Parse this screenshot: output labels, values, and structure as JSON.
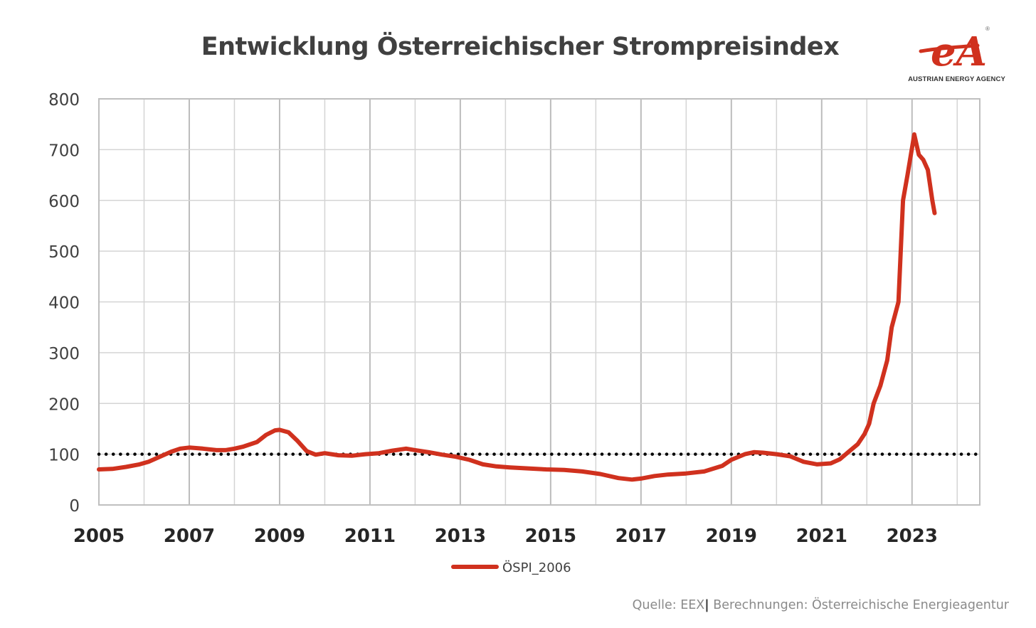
{
  "title": "Entwicklung Österreichischer Strompreisindex",
  "logo": {
    "brand": "eA",
    "caption": "AUSTRIAN ENERGY AGENCY",
    "registered": "®"
  },
  "source": {
    "prefix": "Quelle: EEX",
    "separator": "|",
    "suffix": " Berechnungen: Österreichische Energieagentur"
  },
  "colors": {
    "series": "#d0311e",
    "grid": "#d4d4d4",
    "axis_text": "#404040",
    "reference": "#000000"
  },
  "chart_data": {
    "type": "line",
    "title": "Entwicklung Österreichischer Strompreisindex",
    "xlabel": "",
    "ylabel": "",
    "xlim": [
      2005,
      2024.5
    ],
    "ylim": [
      0,
      800
    ],
    "grid": true,
    "legend_position": "bottom-center",
    "x_tick_labels": [
      "2005",
      "2007",
      "2009",
      "2011",
      "2013",
      "2015",
      "2017",
      "2019",
      "2021",
      "2023"
    ],
    "y_tick_labels": [
      "0",
      "100",
      "200",
      "300",
      "400",
      "500",
      "600",
      "700",
      "800"
    ],
    "reference_line": {
      "y": 100,
      "style": "dotted"
    },
    "series": [
      {
        "name": "ÖSPI_2006",
        "x": [
          2005.0,
          2005.3,
          2005.6,
          2005.9,
          2006.1,
          2006.4,
          2006.6,
          2006.8,
          2007.0,
          2007.3,
          2007.6,
          2007.8,
          2008.0,
          2008.2,
          2008.5,
          2008.7,
          2008.9,
          2009.0,
          2009.2,
          2009.4,
          2009.6,
          2009.8,
          2010.0,
          2010.3,
          2010.6,
          2010.9,
          2011.2,
          2011.5,
          2011.8,
          2012.0,
          2012.3,
          2012.6,
          2012.9,
          2013.2,
          2013.5,
          2013.8,
          2014.1,
          2014.5,
          2014.9,
          2015.3,
          2015.7,
          2016.1,
          2016.5,
          2016.8,
          2017.0,
          2017.3,
          2017.6,
          2018.0,
          2018.4,
          2018.8,
          2019.0,
          2019.3,
          2019.5,
          2019.7,
          2020.0,
          2020.3,
          2020.6,
          2020.9,
          2021.2,
          2021.4,
          2021.6,
          2021.8,
          2021.95,
          2022.05,
          2022.15,
          2022.3,
          2022.45,
          2022.55,
          2022.7,
          2022.8,
          2022.9,
          2023.05,
          2023.15,
          2023.25,
          2023.35,
          2023.45,
          2023.5
        ],
        "values": [
          70,
          71,
          75,
          80,
          85,
          97,
          105,
          111,
          113,
          111,
          108,
          108,
          111,
          115,
          124,
          138,
          147,
          148,
          143,
          126,
          106,
          99,
          102,
          98,
          97,
          100,
          102,
          107,
          111,
          108,
          104,
          99,
          95,
          89,
          80,
          76,
          74,
          72,
          70,
          69,
          66,
          61,
          53,
          50,
          52,
          57,
          60,
          62,
          66,
          77,
          89,
          100,
          104,
          103,
          100,
          96,
          85,
          80,
          82,
          90,
          105,
          120,
          140,
          160,
          200,
          235,
          285,
          350,
          400,
          600,
          650,
          730,
          690,
          680,
          660,
          600,
          575
        ]
      }
    ]
  }
}
